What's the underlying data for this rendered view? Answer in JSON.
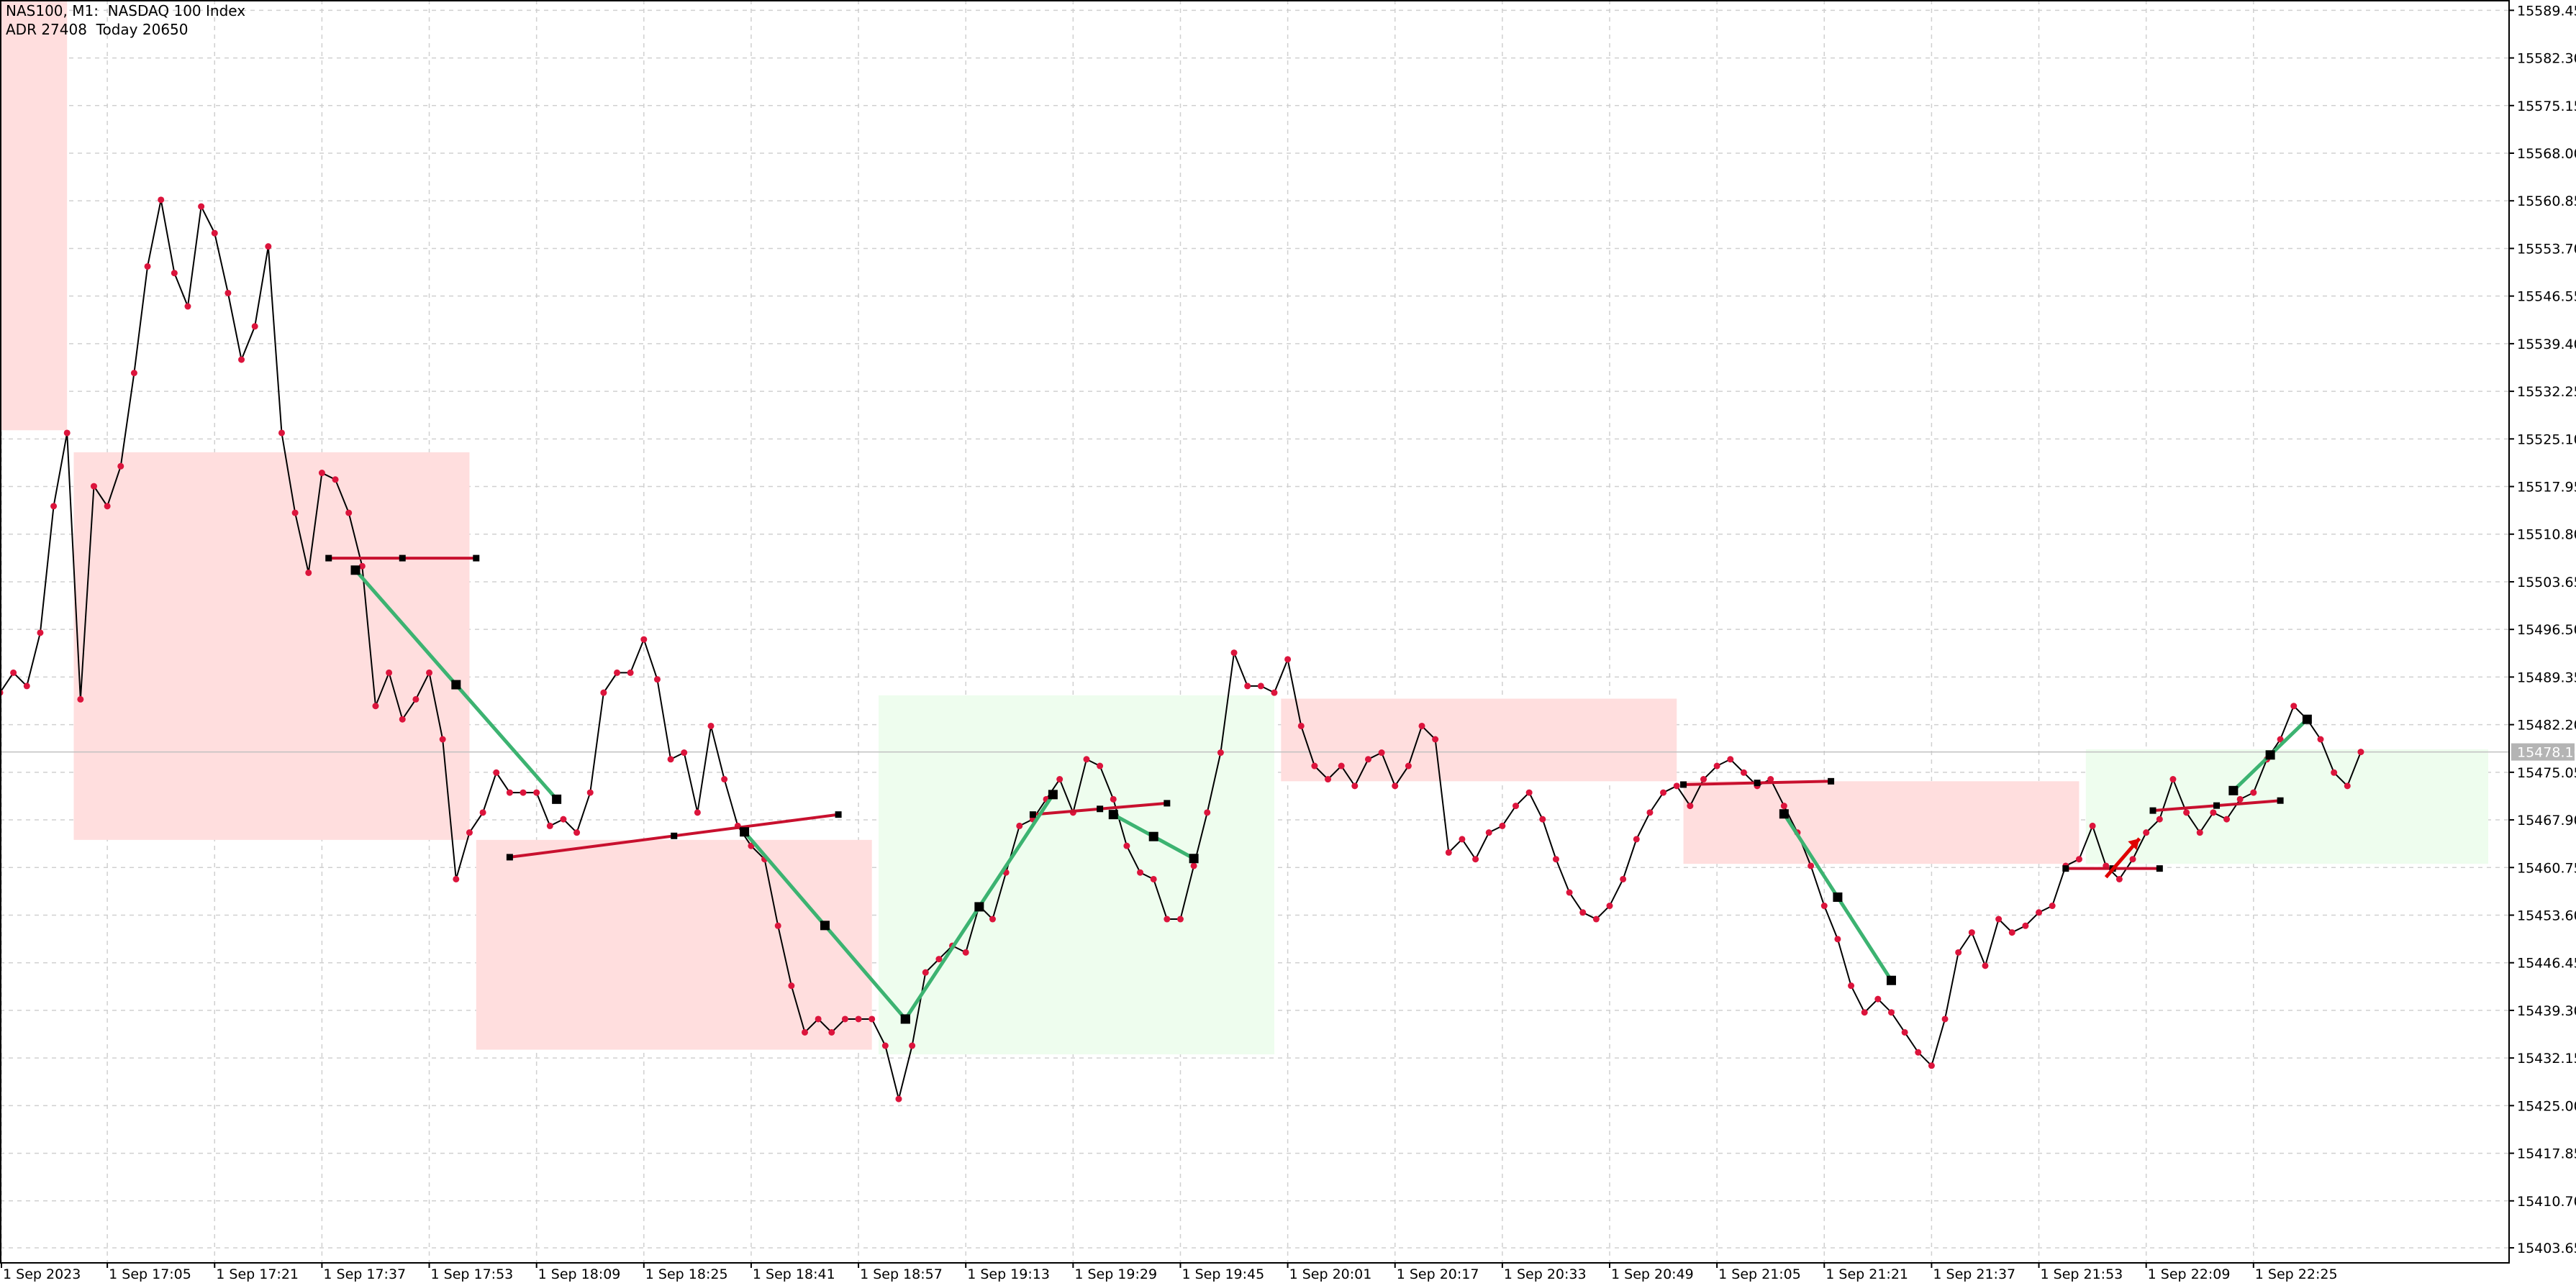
{
  "header": {
    "title": "NAS100, M1:  NASDAQ 100 Index",
    "stats": "ADR 27408  Today 20650"
  },
  "colors": {
    "line": "#000000",
    "dot": "#dc143c",
    "zone_bear": "#ffdede",
    "zone_bull": "#eefdee",
    "pivot_line": "#c8102e",
    "swing_line": "#3cb371",
    "marker": "#000000",
    "grid": "#d0d0d0",
    "current_price_bg": "#b4b4b4"
  },
  "chart_data": {
    "type": "line",
    "title": "NAS100, M1:  NASDAQ 100 Index",
    "date": "1 Sep 2023",
    "x_tick_labels": [
      "1 Sep 2023",
      "1 Sep 17:05",
      "1 Sep 17:21",
      "1 Sep 17:37",
      "1 Sep 17:53",
      "1 Sep 18:09",
      "1 Sep 18:25",
      "1 Sep 18:41",
      "1 Sep 18:57",
      "1 Sep 19:13",
      "1 Sep 19:29",
      "1 Sep 19:45",
      "1 Sep 20:01",
      "1 Sep 20:17",
      "1 Sep 20:33",
      "1 Sep 20:49",
      "1 Sep 21:05",
      "1 Sep 21:21",
      "1 Sep 21:37",
      "1 Sep 21:53",
      "1 Sep 22:09",
      "1 Sep 22:25"
    ],
    "x_tick_times": [
      "16:49",
      "17:05",
      "17:21",
      "17:37",
      "17:53",
      "18:09",
      "18:25",
      "18:41",
      "18:57",
      "19:13",
      "19:29",
      "19:45",
      "20:01",
      "20:17",
      "20:33",
      "20:49",
      "21:05",
      "21:21",
      "21:37",
      "21:53",
      "22:09",
      "22:25"
    ],
    "y_tick_labels": [
      "15589.45",
      "15582.30",
      "15575.15",
      "15568.00",
      "15560.85",
      "15553.70",
      "15546.55",
      "15539.40",
      "15532.25",
      "15525.10",
      "15517.95",
      "15510.80",
      "15503.65",
      "15496.50",
      "15489.35",
      "15482.20",
      "15475.05",
      "15467.90",
      "15460.75",
      "15453.60",
      "15446.45",
      "15439.30",
      "15432.15",
      "15425.00",
      "15417.85",
      "15410.70",
      "15403.65"
    ],
    "ylim": [
      15401.5,
      15591.0
    ],
    "xlim": [
      "16:49",
      "23:03"
    ],
    "grid": true,
    "current_price": "15478.10",
    "series": [
      {
        "x": [
          "16:49",
          "16:51",
          "16:53",
          "16:55",
          "16:57",
          "16:59",
          "17:01",
          "17:03",
          "17:05",
          "17:07",
          "17:09",
          "17:11",
          "17:13",
          "17:15",
          "17:17",
          "17:19",
          "17:21",
          "17:23",
          "17:25",
          "17:27",
          "17:29",
          "17:31",
          "17:33",
          "17:35",
          "17:37",
          "17:39",
          "17:41",
          "17:43",
          "17:45",
          "17:47",
          "17:49",
          "17:51",
          "17:53",
          "17:55",
          "17:57",
          "17:59",
          "18:01",
          "18:03",
          "18:05",
          "18:07",
          "18:09",
          "18:11",
          "18:13",
          "18:15",
          "18:17",
          "18:19",
          "18:21",
          "18:23",
          "18:25",
          "18:27",
          "18:29",
          "18:31",
          "18:33",
          "18:35",
          "18:37",
          "18:39",
          "18:41",
          "18:43",
          "18:45",
          "18:47",
          "18:49",
          "18:51",
          "18:53",
          "18:55",
          "18:57",
          "18:59",
          "19:01",
          "19:03",
          "19:05",
          "19:07",
          "19:09",
          "19:11",
          "19:13",
          "19:15",
          "19:17",
          "19:19",
          "19:21",
          "19:23",
          "19:25",
          "19:27",
          "19:29",
          "19:31",
          "19:33",
          "19:35",
          "19:37",
          "19:39",
          "19:41",
          "19:43",
          "19:45",
          "19:47",
          "19:49",
          "19:51",
          "19:53",
          "19:55",
          "19:57",
          "19:59",
          "20:01",
          "20:03",
          "20:05",
          "20:07",
          "20:09",
          "20:11",
          "20:13",
          "20:15",
          "20:17",
          "20:19",
          "20:21",
          "20:23",
          "20:25",
          "20:27",
          "20:29",
          "20:31",
          "20:33",
          "20:35",
          "20:37",
          "20:39",
          "20:41",
          "20:43",
          "20:45",
          "20:47",
          "20:49",
          "20:51",
          "20:53",
          "20:55",
          "20:57",
          "20:59",
          "21:01",
          "21:03",
          "21:05",
          "21:07",
          "21:09",
          "21:11",
          "21:13",
          "21:15",
          "21:17",
          "21:19",
          "21:21",
          "21:23",
          "21:25",
          "21:27",
          "21:29",
          "21:31",
          "21:33",
          "21:35",
          "21:37",
          "21:39",
          "21:41",
          "21:43",
          "21:45",
          "21:47",
          "21:49",
          "21:51",
          "21:53",
          "21:55",
          "21:57",
          "21:59",
          "22:01",
          "22:03",
          "22:05",
          "22:07",
          "22:09",
          "22:11",
          "22:13",
          "22:15",
          "22:17",
          "22:19",
          "22:21",
          "22:23",
          "22:25",
          "22:27",
          "22:29",
          "22:31",
          "22:33",
          "22:35",
          "22:37",
          "22:39",
          "22:41"
        ],
        "y": [
          15487,
          15490,
          15488,
          15496,
          15515,
          15526,
          15486,
          15518,
          15515,
          15521,
          15535,
          15551,
          15561,
          15550,
          15545,
          15560,
          15556,
          15547,
          15537,
          15542,
          15554,
          15526,
          15514,
          15505,
          15520,
          15519,
          15514,
          15506,
          15485,
          15490,
          15483,
          15486,
          15490,
          15480,
          15459,
          15466,
          15469,
          15475,
          15472,
          15472,
          15472,
          15467,
          15468,
          15466,
          15472,
          15487,
          15490,
          15490,
          15495,
          15489,
          15477,
          15478,
          15469,
          15482,
          15474,
          15467,
          15464,
          15462,
          15452,
          15443,
          15436,
          15438,
          15436,
          15438,
          15438,
          15438,
          15434,
          15426,
          15434,
          15445,
          15447,
          15449,
          15448,
          15455,
          15453,
          15460,
          15467,
          15468,
          15471,
          15474,
          15469,
          15477,
          15476,
          15471,
          15464,
          15460,
          15459,
          15453,
          15453,
          15461,
          15469,
          15478,
          15493,
          15488,
          15488,
          15487,
          15492,
          15482,
          15476,
          15474,
          15476,
          15473,
          15477,
          15478,
          15473,
          15476,
          15482,
          15480,
          15463,
          15465,
          15462,
          15466,
          15467,
          15470,
          15472,
          15468,
          15462,
          15457,
          15454,
          15453,
          15455,
          15459,
          15465,
          15469,
          15472,
          15473,
          15470,
          15474,
          15476,
          15477,
          15475,
          15473,
          15474,
          15470,
          15466,
          15461,
          15455,
          15450,
          15443,
          15439,
          15441,
          15439,
          15436,
          15433,
          15431,
          15438,
          15448,
          15451,
          15446,
          15453,
          15451,
          15452,
          15454,
          15455,
          15461,
          15462,
          15467,
          15461,
          15459,
          15462,
          15466,
          15468,
          15474,
          15469,
          15466,
          15469,
          15468,
          15471,
          15472,
          15477,
          15480,
          15485,
          15483,
          15480,
          15475,
          15473,
          15478.1
        ]
      }
    ],
    "zones": [
      {
        "kind": "bear",
        "from": "16:49",
        "to": "16:59",
        "high": 15591.0,
        "low": 15526.4
      },
      {
        "kind": "bear",
        "from": "17:00",
        "to": "17:59",
        "high": 15523.1,
        "low": 15464.9
      },
      {
        "kind": "bear",
        "from": "18:00",
        "to": "18:59",
        "high": 15464.9,
        "low": 15433.4
      },
      {
        "kind": "bull",
        "from": "19:00",
        "to": "19:59",
        "high": 15486.6,
        "low": 15432.7
      },
      {
        "kind": "bear",
        "from": "20:00",
        "to": "20:59",
        "high": 15486.1,
        "low": 15473.7
      },
      {
        "kind": "bear",
        "from": "21:00",
        "to": "21:59",
        "high": 15473.7,
        "low": 15461.3
      },
      {
        "kind": "bull",
        "from": "22:00",
        "to": "23:00",
        "high": 15478.5,
        "low": 15461.3
      }
    ],
    "pivot_lines": [
      {
        "from": [
          "17:38",
          15507.2
        ],
        "to": [
          "18:00",
          15507.2
        ]
      },
      {
        "from": [
          "18:05",
          15462.3
        ],
        "to": [
          "18:54",
          15468.7
        ]
      },
      {
        "from": [
          "19:23",
          15468.7
        ],
        "to": [
          "19:43",
          15470.4
        ]
      },
      {
        "from": [
          "21:00",
          15473.2
        ],
        "to": [
          "21:22",
          15473.7
        ]
      },
      {
        "from": [
          "21:57",
          15460.6
        ],
        "to": [
          "22:11",
          15460.6
        ]
      },
      {
        "from": [
          "22:10",
          15469.3
        ],
        "to": [
          "22:29",
          15470.8
        ]
      }
    ],
    "swing_lines": [
      {
        "from": [
          "17:42",
          15505.4
        ],
        "to": [
          "18:12",
          15471.0
        ]
      },
      {
        "from": [
          "18:40",
          15466.1
        ],
        "to": [
          "19:04",
          15438.0
        ]
      },
      {
        "from": [
          "19:04",
          15438.0
        ],
        "to": [
          "19:26",
          15471.7
        ]
      },
      {
        "from": [
          "19:35",
          15468.7
        ],
        "to": [
          "19:47",
          15462.1
        ]
      },
      {
        "from": [
          "21:15",
          15468.8
        ],
        "to": [
          "21:31",
          15443.8
        ]
      },
      {
        "from": [
          "22:22",
          15472.3
        ],
        "to": [
          "22:33",
          15483.0
        ]
      }
    ],
    "arrow": {
      "from": [
        "22:03",
        15459.3
      ],
      "to": [
        "22:08",
        15465.1
      ]
    }
  }
}
